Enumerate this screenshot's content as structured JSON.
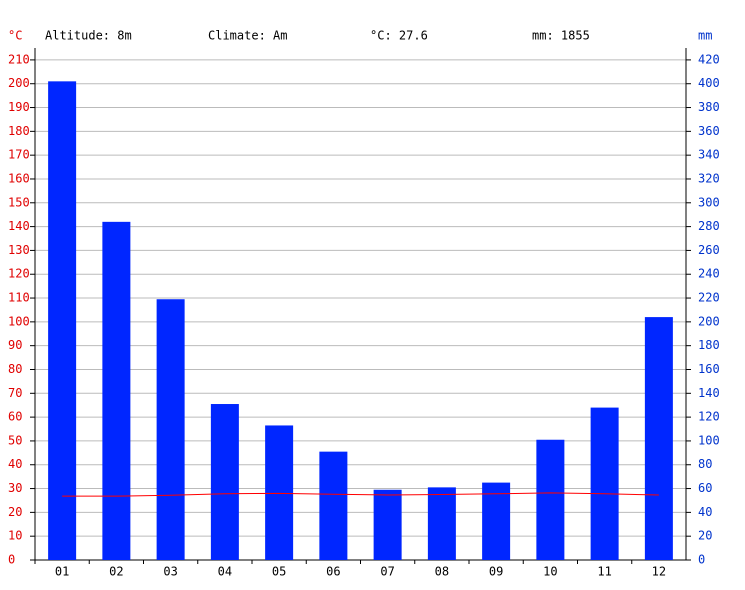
{
  "chart_data": {
    "type": "bar",
    "annotations": [
      "Altitude: 8m",
      "Climate: Am",
      "°C: 27.6",
      "mm: 1855"
    ],
    "ylabel": "°C",
    "y2label": "mm",
    "categories": [
      "01",
      "02",
      "03",
      "04",
      "05",
      "06",
      "07",
      "08",
      "09",
      "10",
      "11",
      "12"
    ],
    "series": [
      {
        "type": "bar",
        "axis": "y2",
        "color": "#0026ff",
        "values": [
          402,
          284,
          219,
          131,
          113,
          91,
          59,
          61,
          65,
          101,
          128,
          204
        ]
      },
      {
        "type": "line",
        "axis": "y",
        "color": "#ff0000",
        "values": [
          26.8,
          26.8,
          27.2,
          27.8,
          28.0,
          27.6,
          27.3,
          27.5,
          27.8,
          28.2,
          27.8,
          27.3
        ]
      }
    ],
    "ylim": [
      0,
      215
    ],
    "yticks": [
      0,
      10,
      20,
      30,
      40,
      50,
      60,
      70,
      80,
      90,
      100,
      110,
      120,
      130,
      140,
      150,
      160,
      170,
      180,
      190,
      200,
      210
    ],
    "y2lim": [
      0,
      430
    ],
    "y2ticks": [
      0,
      20,
      40,
      60,
      80,
      100,
      120,
      140,
      160,
      180,
      200,
      220,
      240,
      260,
      280,
      300,
      320,
      340,
      360,
      380,
      400,
      420
    ],
    "ycolor": "#e00000",
    "y2color": "#0033cc",
    "grid": true
  }
}
